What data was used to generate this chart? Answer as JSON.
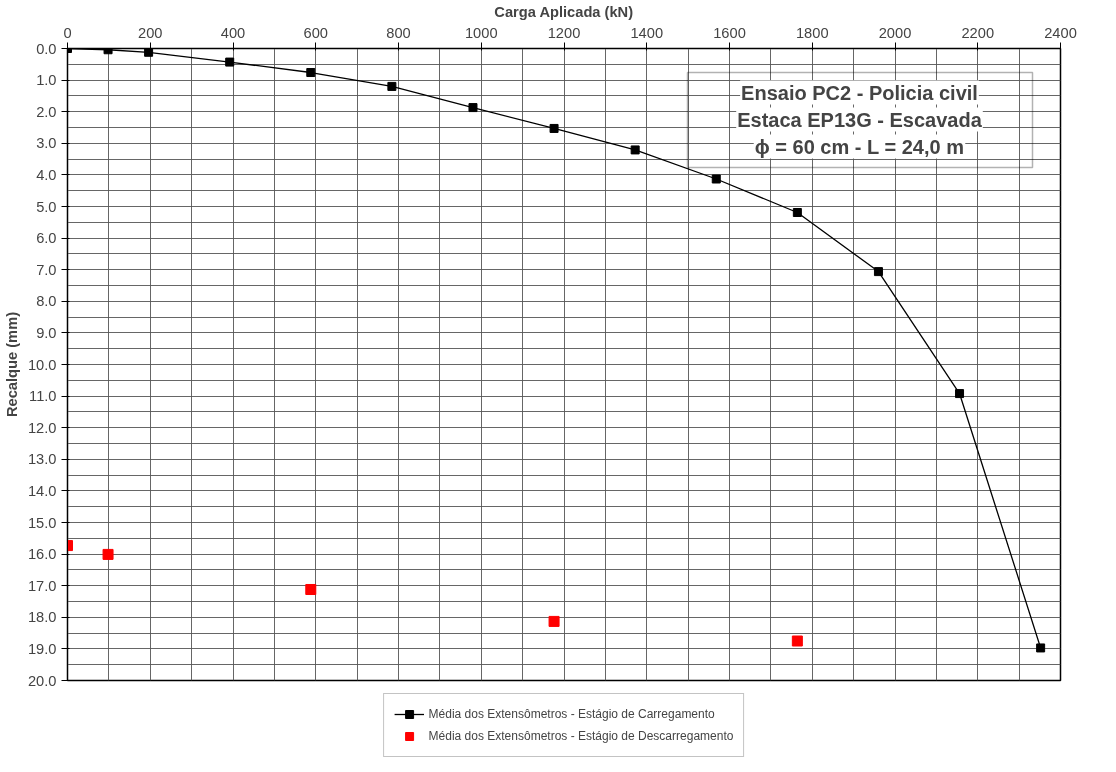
{
  "chart_data": {
    "type": "line",
    "xlabel": "Carga Aplicada (kN)",
    "ylabel": "Recalque (mm)",
    "annotations": [
      "Ensaio PC2 - Policia civil",
      "Estaca EP13G - Escavada",
      "ϕ = 60 cm - L = 24,0 m"
    ],
    "series": [
      {
        "name": "Média dos Extensômetros - Estágio de Carregamento",
        "color": "#000000",
        "marker": "square",
        "x": [
          0,
          98,
          196,
          392,
          588,
          784,
          980,
          1176,
          1372,
          1568,
          1764,
          1960,
          2156,
          2352
        ],
        "values": [
          0.0,
          0.04,
          0.12,
          0.43,
          0.76,
          1.2,
          1.87,
          2.53,
          3.21,
          4.13,
          5.19,
          7.06,
          10.92,
          18.97
        ]
      },
      {
        "name": "Média dos Extensômetros - Estágio de Descarregamento",
        "type": "scatter",
        "color": "#ff0000",
        "marker": "square",
        "x": [
          0,
          98,
          588,
          1176,
          1764
        ],
        "values": [
          15.73,
          16.01,
          17.12,
          18.13,
          18.75
        ]
      }
    ],
    "xlim": [
      0,
      2400
    ],
    "xticks": [
      0,
      {
        "value": 100,
        "label": null
      },
      200,
      {
        "value": 300,
        "label": null
      },
      400,
      {
        "value": 500,
        "label": null
      },
      600,
      {
        "value": 700,
        "label": null
      },
      800,
      {
        "value": 900,
        "label": null
      },
      1000,
      {
        "value": 1100,
        "label": null
      },
      1200,
      {
        "value": 1300,
        "label": null
      },
      1400,
      {
        "value": 1500,
        "label": null
      },
      1600,
      {
        "value": 1700,
        "label": null
      },
      1800,
      {
        "value": 1900,
        "label": null
      },
      2000,
      {
        "value": 2100,
        "label": null
      },
      2200,
      {
        "value": 2300,
        "label": null
      },
      2400
    ],
    "ylim": [
      20,
      0
    ],
    "yticks": [
      {
        "value": 0,
        "label": "0.0"
      },
      {
        "value": 0.5,
        "label": null
      },
      {
        "value": 1,
        "label": "1.0"
      },
      {
        "value": 1.5,
        "label": null
      },
      {
        "value": 2,
        "label": "2.0"
      },
      {
        "value": 2.5,
        "label": null
      },
      {
        "value": 3,
        "label": "3.0"
      },
      {
        "value": 3.5,
        "label": null
      },
      {
        "value": 4,
        "label": "4.0"
      },
      {
        "value": 4.5,
        "label": null
      },
      {
        "value": 5,
        "label": "5.0"
      },
      {
        "value": 5.5,
        "label": null
      },
      {
        "value": 6,
        "label": "6.0"
      },
      {
        "value": 6.5,
        "label": null
      },
      {
        "value": 7,
        "label": "7.0"
      },
      {
        "value": 7.5,
        "label": null
      },
      {
        "value": 8,
        "label": "8.0"
      },
      {
        "value": 8.5,
        "label": null
      },
      {
        "value": 9,
        "label": "9.0"
      },
      {
        "value": 9.5,
        "label": null
      },
      {
        "value": 10,
        "label": "10.0"
      },
      {
        "value": 10.5,
        "label": null
      },
      {
        "value": 11,
        "label": "11.0"
      },
      {
        "value": 11.5,
        "label": null
      },
      {
        "value": 12,
        "label": "12.0"
      },
      {
        "value": 12.5,
        "label": null
      },
      {
        "value": 13,
        "label": "13.0"
      },
      {
        "value": 13.5,
        "label": null
      },
      {
        "value": 14,
        "label": "14.0"
      },
      {
        "value": 14.5,
        "label": null
      },
      {
        "value": 15,
        "label": "15.0"
      },
      {
        "value": 15.5,
        "label": null
      },
      {
        "value": 16,
        "label": "16.0"
      },
      {
        "value": 16.5,
        "label": null
      },
      {
        "value": 17,
        "label": "17.0"
      },
      {
        "value": 17.5,
        "label": null
      },
      {
        "value": 18,
        "label": "18.0"
      },
      {
        "value": 18.5,
        "label": null
      },
      {
        "value": 19,
        "label": "19.0"
      },
      {
        "value": 19.5,
        "label": null
      },
      {
        "value": 20,
        "label": "20.0"
      }
    ],
    "grid": true,
    "legend": "bottom",
    "line_style": "solid"
  }
}
